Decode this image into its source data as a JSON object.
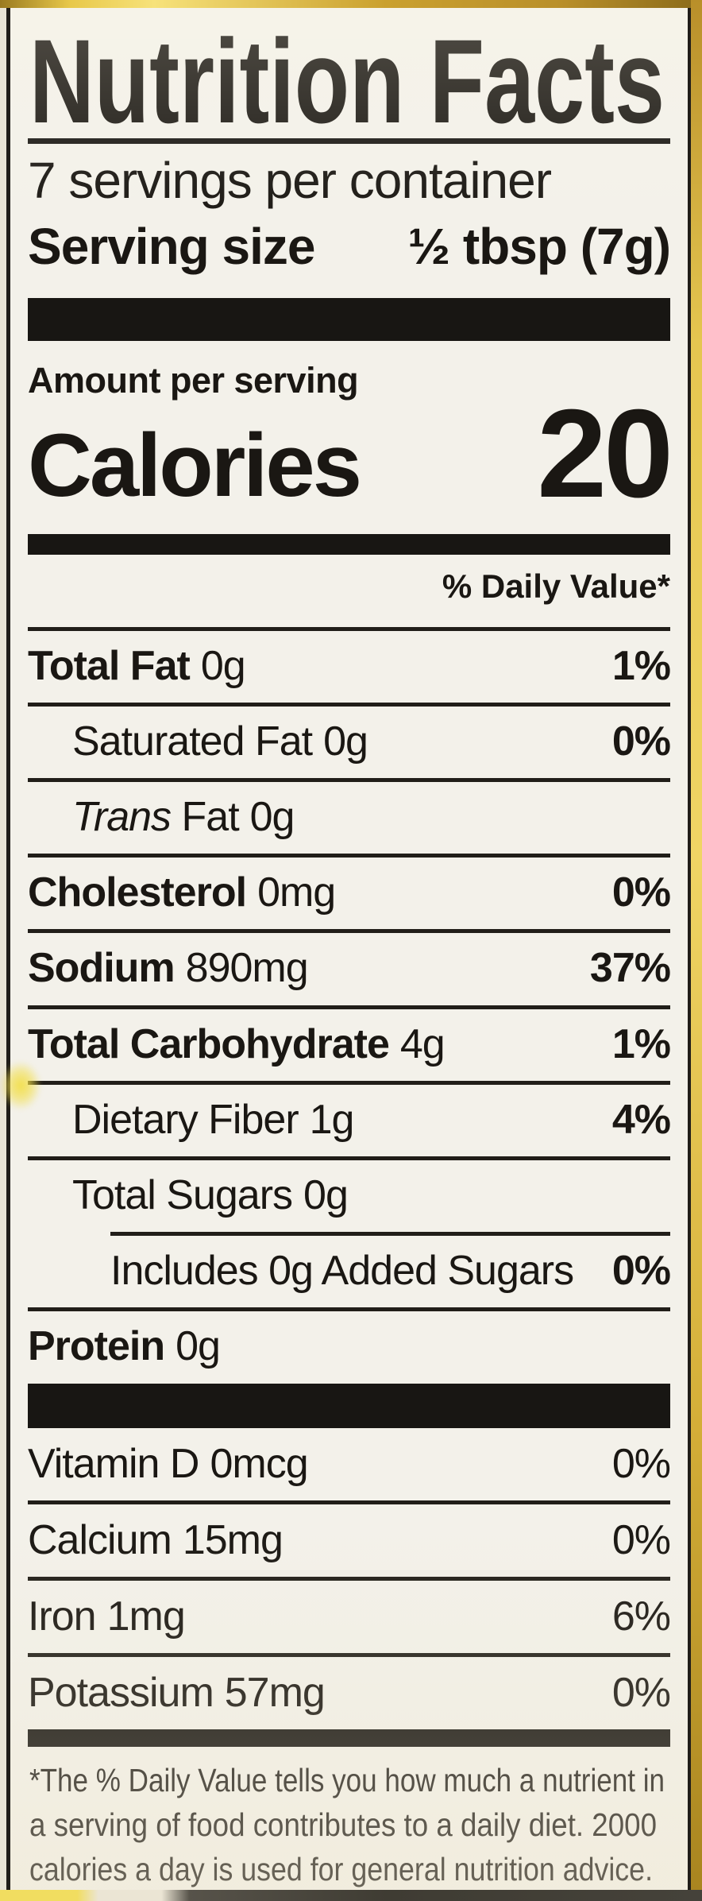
{
  "label": {
    "title": "Nutrition Facts",
    "servings_per_container": "7 servings per container",
    "serving_size_label": "Serving size",
    "serving_size_value": "½ tbsp (7g)",
    "amount_per_serving": "Amount per serving",
    "calories_label": "Calories",
    "calories_value": "20",
    "daily_value_header": "% Daily Value*",
    "rows": [
      {
        "name": "Total Fat",
        "value": "0g",
        "dv": "1%"
      },
      {
        "name": "Saturated Fat",
        "value": "0g",
        "dv": "0%"
      },
      {
        "prefix": "Trans",
        "name": " Fat",
        "value": "0g",
        "dv": ""
      },
      {
        "name": "Cholesterol",
        "value": "0mg",
        "dv": "0%"
      },
      {
        "name": "Sodium",
        "value": "890mg",
        "dv": "37%"
      },
      {
        "name": "Total Carbohydrate",
        "value": "4g",
        "dv": "1%"
      },
      {
        "name": "Dietary Fiber",
        "value": "1g",
        "dv": "4%"
      },
      {
        "name": "Total Sugars",
        "value": "0g",
        "dv": ""
      },
      {
        "name": "Includes 0g Added Sugars",
        "value": "",
        "dv": "0%"
      },
      {
        "name": "Protein",
        "value": "0g",
        "dv": ""
      }
    ],
    "vitamins": [
      {
        "name": "Vitamin D",
        "value": "0mcg",
        "dv": "0%"
      },
      {
        "name": "Calcium",
        "value": "15mg",
        "dv": "0%"
      },
      {
        "name": "Iron",
        "value": "1mg",
        "dv": "6%"
      },
      {
        "name": "Potassium",
        "value": "57mg",
        "dv": "0%"
      }
    ],
    "footnote_lines": [
      "*The % Daily Value tells you how much a nutrient in",
      "a serving of food contributes to a daily diet. 2000",
      "calories a day is used for general nutrition advice."
    ]
  },
  "colors": {
    "paper": "#f3f1ea",
    "ink": "#1a1713",
    "package_gold": "#d4ae38"
  }
}
